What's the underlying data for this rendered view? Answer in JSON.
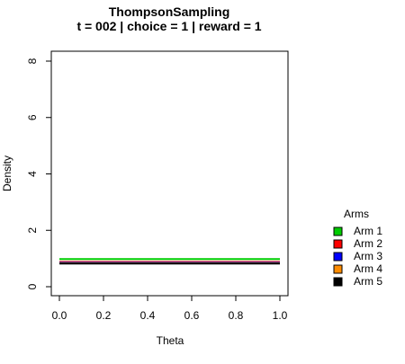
{
  "chart_data": {
    "type": "line",
    "title": "ThompsonSampling",
    "subtitle": "t = 002 | choice = 1 | reward = 1",
    "xlabel": "Theta",
    "ylabel": "Density",
    "xlim": [
      0,
      1
    ],
    "ylim": [
      0,
      8
    ],
    "x_ticks": [
      "0.0",
      "0.2",
      "0.4",
      "0.6",
      "0.8",
      "1.0"
    ],
    "y_ticks": [
      "0",
      "2",
      "4",
      "6",
      "8"
    ],
    "grid": false,
    "legend": {
      "title": "Arms",
      "placement": "right"
    },
    "series": [
      {
        "name": "Arm 1",
        "color": "#00cc00",
        "x": [
          0,
          1
        ],
        "y": [
          0.98,
          0.98
        ]
      },
      {
        "name": "Arm 2",
        "color": "#ff0000",
        "x": [
          0,
          1
        ],
        "y": [
          0.88,
          0.88
        ]
      },
      {
        "name": "Arm 3",
        "color": "#0000ff",
        "x": [
          0,
          1
        ],
        "y": [
          0.86,
          0.86
        ]
      },
      {
        "name": "Arm 4",
        "color": "#ff8c00",
        "x": [
          0,
          1
        ],
        "y": [
          0.84,
          0.84
        ]
      },
      {
        "name": "Arm 5",
        "color": "#000000",
        "x": [
          0,
          1
        ],
        "y": [
          0.82,
          0.82
        ]
      }
    ]
  }
}
